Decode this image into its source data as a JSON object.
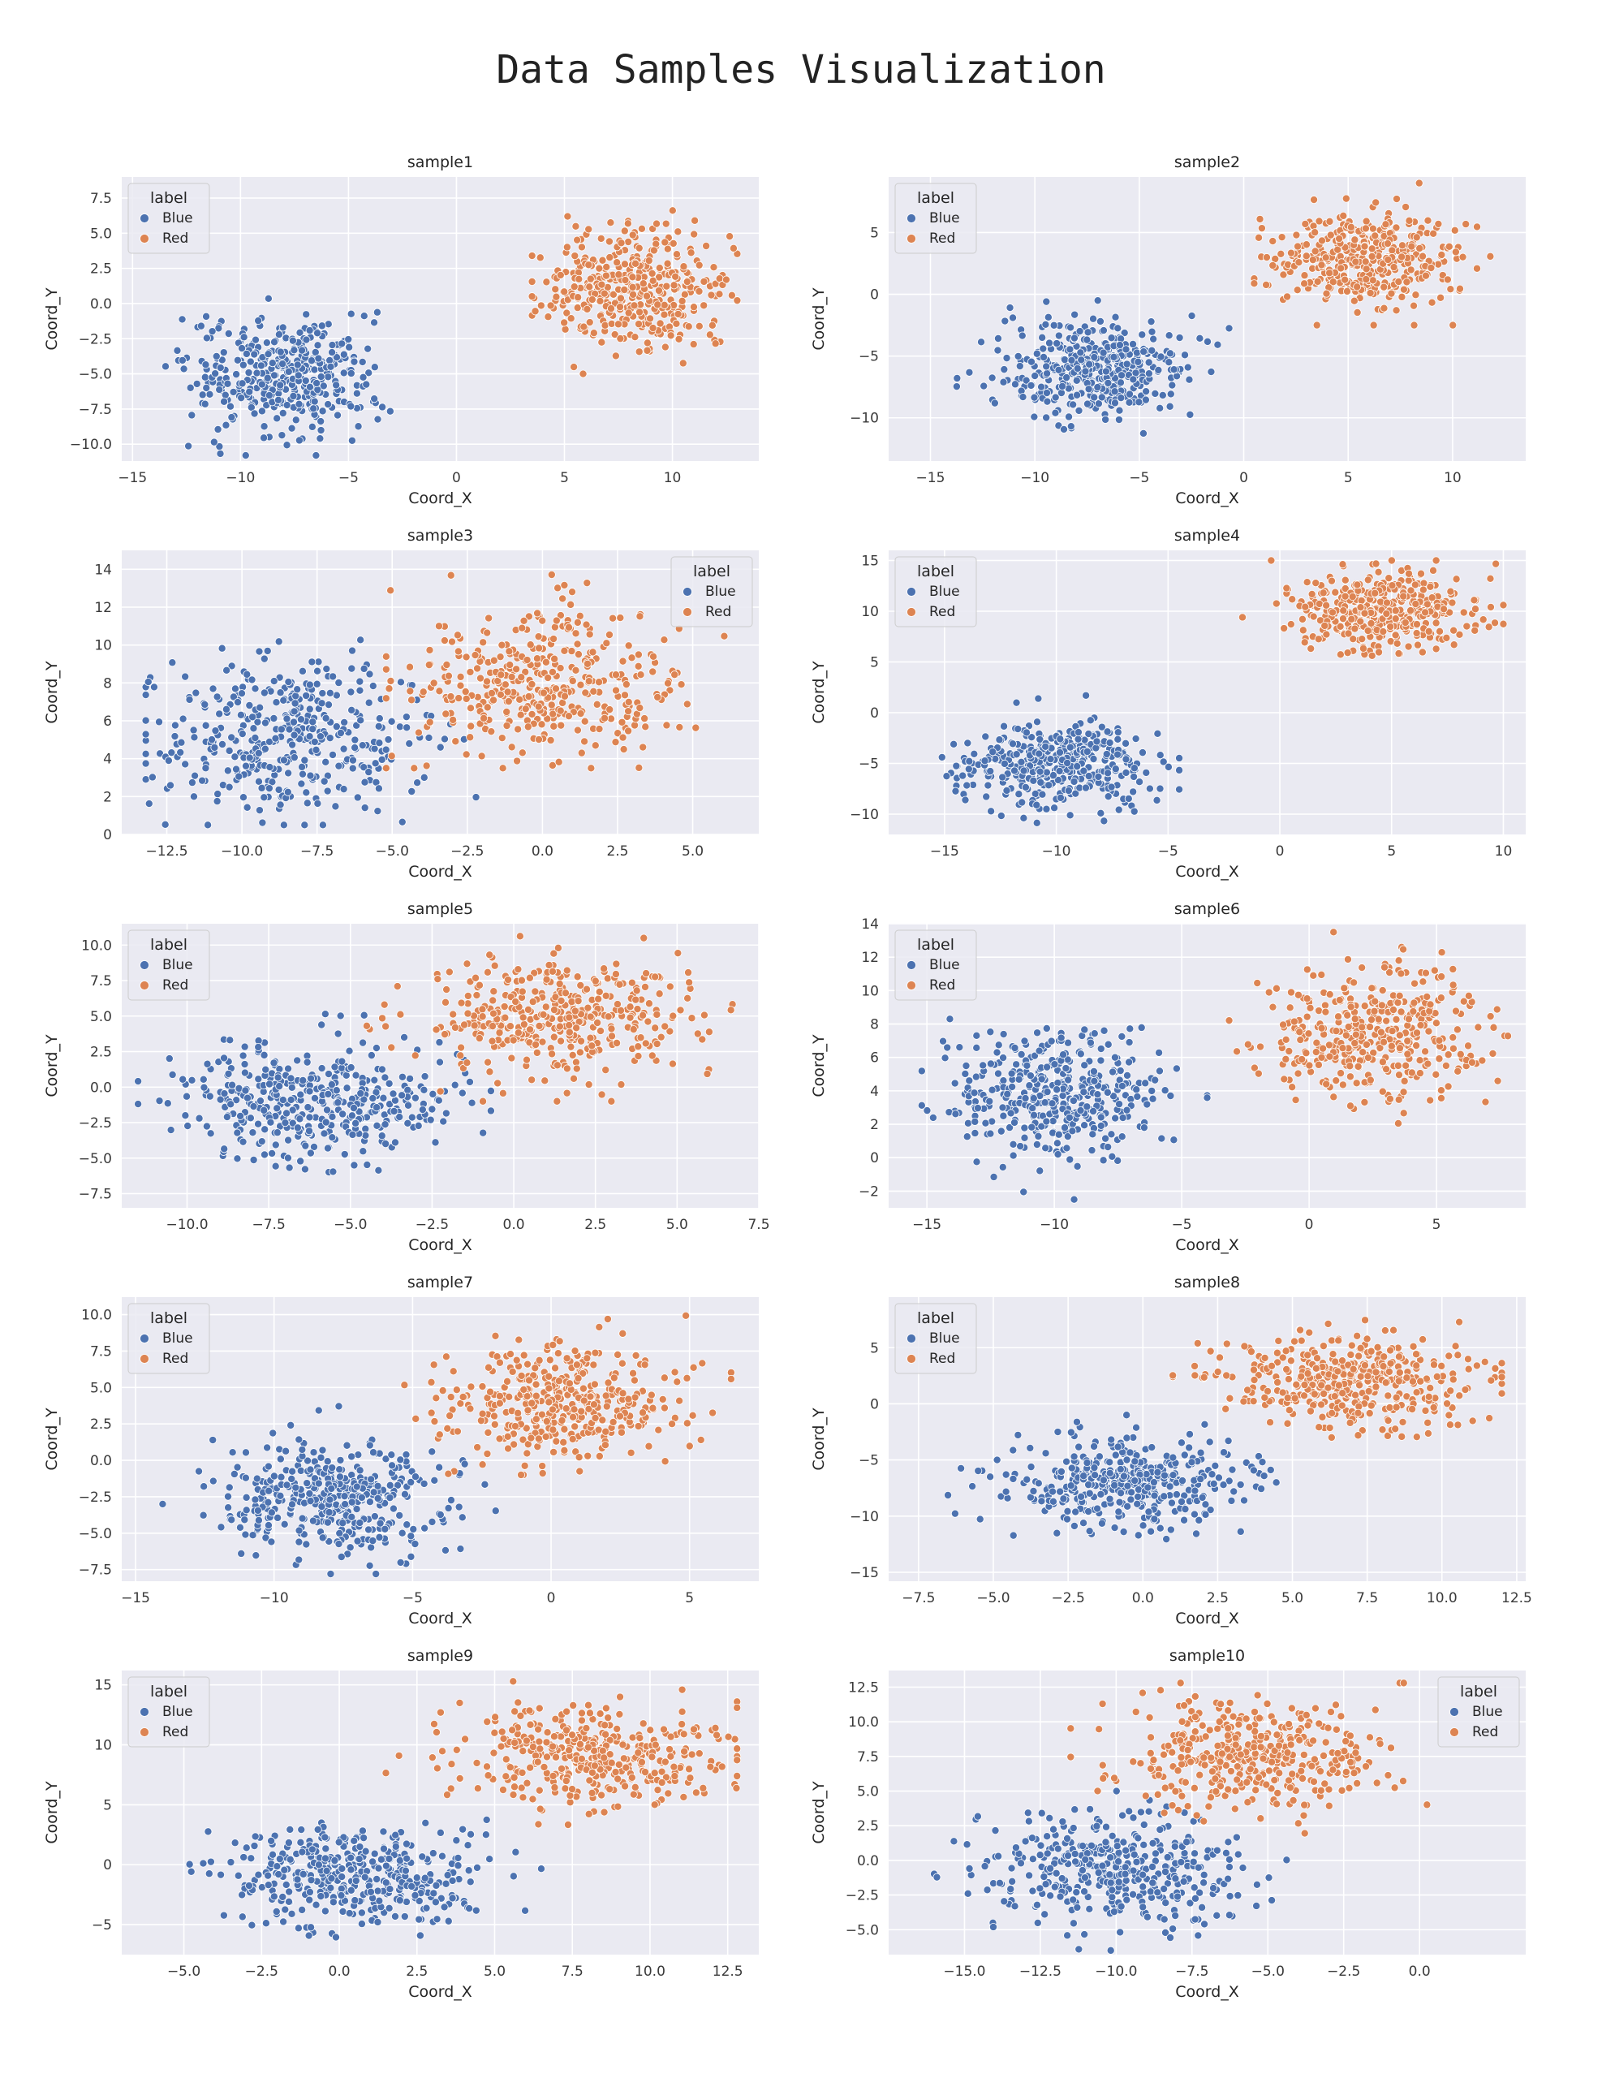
{
  "title": "Data Samples Visualization",
  "palette": {
    "Blue": "#4c72b0",
    "Red": "#dd8452"
  },
  "chart_data": [
    {
      "type": "scatter",
      "title": "sample1",
      "xlabel": "Coord_X",
      "ylabel": "Coord_Y",
      "xlim": [
        -15.5,
        14.0
      ],
      "ylim": [
        -11.2,
        9.0
      ],
      "xticks": [
        -15,
        -10,
        -5,
        0,
        5,
        10
      ],
      "xtick_labels": [
        "−15",
        "−10",
        "−5",
        "0",
        "5",
        "10"
      ],
      "yticks": [
        -10,
        -7.5,
        -5,
        -2.5,
        0,
        2.5,
        5,
        7.5
      ],
      "ytick_labels": [
        "−10.0",
        "−7.5",
        "−5.0",
        "−2.5",
        "0.0",
        "2.5",
        "5.0",
        "7.5"
      ],
      "legend": {
        "title": "label",
        "loc": "upper-left",
        "entries": [
          "Blue",
          "Red"
        ]
      },
      "series": [
        {
          "name": "Blue",
          "center": [
            -8,
            -5
          ],
          "spread": [
            2.1,
            2.0
          ],
          "n": 400,
          "bounds": [
            -14.3,
            -2.0,
            -10.8,
            1.5
          ]
        },
        {
          "name": "Red",
          "center": [
            8,
            1
          ],
          "spread": [
            2.1,
            2.0
          ],
          "n": 400,
          "bounds": [
            3.5,
            13.0,
            -5.0,
            8.5
          ]
        }
      ]
    },
    {
      "type": "scatter",
      "title": "sample2",
      "xlabel": "Coord_X",
      "ylabel": "Coord_Y",
      "xlim": [
        -17.0,
        13.5
      ],
      "ylim": [
        -13.5,
        9.5
      ],
      "xticks": [
        -15,
        -10,
        -5,
        0,
        5,
        10
      ],
      "xtick_labels": [
        "−15",
        "−10",
        "−5",
        "0",
        "5",
        "10"
      ],
      "yticks": [
        -10,
        -5,
        0,
        5
      ],
      "ytick_labels": [
        "−10",
        "−5",
        "0",
        "5"
      ],
      "legend": {
        "title": "label",
        "loc": "upper-left",
        "entries": [
          "Blue",
          "Red"
        ]
      },
      "series": [
        {
          "name": "Blue",
          "center": [
            -7,
            -6
          ],
          "spread": [
            2.2,
            2.0
          ],
          "n": 400,
          "bounds": [
            -15.7,
            -0.7,
            -12.2,
            -0.5
          ]
        },
        {
          "name": "Red",
          "center": [
            6,
            3
          ],
          "spread": [
            2.2,
            2.0
          ],
          "n": 400,
          "bounds": [
            0.5,
            12.2,
            -2.5,
            9.0
          ]
        }
      ]
    },
    {
      "type": "scatter",
      "title": "sample3",
      "xlabel": "Coord_X",
      "ylabel": "Coord_Y",
      "xlim": [
        -14.0,
        7.2
      ],
      "ylim": [
        0,
        15.0
      ],
      "xticks": [
        -12.5,
        -10,
        -7.5,
        -5,
        -2.5,
        0,
        2.5,
        5
      ],
      "xtick_labels": [
        "−12.5",
        "−10.0",
        "−7.5",
        "−5.0",
        "−2.5",
        "0.0",
        "2.5",
        "5.0"
      ],
      "yticks": [
        0,
        2,
        4,
        6,
        8,
        10,
        12,
        14
      ],
      "ytick_labels": [
        "0",
        "2",
        "4",
        "6",
        "8",
        "10",
        "12",
        "14"
      ],
      "legend": {
        "title": "label",
        "loc": "upper-right",
        "entries": [
          "Blue",
          "Red"
        ]
      },
      "series": [
        {
          "name": "Blue",
          "center": [
            -8.5,
            5
          ],
          "spread": [
            2.2,
            2.0
          ],
          "n": 400,
          "bounds": [
            -13.2,
            -2.0,
            0.5,
            11.0
          ]
        },
        {
          "name": "Red",
          "center": [
            0,
            8
          ],
          "spread": [
            2.2,
            2.0
          ],
          "n": 400,
          "bounds": [
            -5.2,
            6.3,
            3.5,
            14.5
          ]
        }
      ]
    },
    {
      "type": "scatter",
      "title": "sample4",
      "xlabel": "Coord_X",
      "ylabel": "Coord_Y",
      "xlim": [
        -17.5,
        11.0
      ],
      "ylim": [
        -12.0,
        16.0
      ],
      "xticks": [
        -15,
        -10,
        -5,
        0,
        5,
        10
      ],
      "xtick_labels": [
        "−15",
        "−10",
        "−5",
        "0",
        "5",
        "10"
      ],
      "yticks": [
        -10,
        -5,
        0,
        5,
        10,
        15
      ],
      "ytick_labels": [
        "−10",
        "−5",
        "0",
        "5",
        "10",
        "15"
      ],
      "legend": {
        "title": "label",
        "loc": "upper-left",
        "entries": [
          "Blue",
          "Red"
        ]
      },
      "series": [
        {
          "name": "Blue",
          "center": [
            -10,
            -5
          ],
          "spread": [
            2.1,
            2.0
          ],
          "n": 400,
          "bounds": [
            -16.3,
            -4.5,
            -11.2,
            2.0
          ]
        },
        {
          "name": "Red",
          "center": [
            4.5,
            10
          ],
          "spread": [
            2.1,
            2.0
          ],
          "n": 400,
          "bounds": [
            -2.2,
            10.0,
            3.5,
            15.0
          ]
        }
      ]
    },
    {
      "type": "scatter",
      "title": "sample5",
      "xlabel": "Coord_X",
      "ylabel": "Coord_Y",
      "xlim": [
        -12.0,
        7.5
      ],
      "ylim": [
        -8.5,
        11.5
      ],
      "xticks": [
        -10,
        -7.5,
        -5,
        -2.5,
        0,
        2.5,
        5,
        7.5
      ],
      "xtick_labels": [
        "−10.0",
        "−7.5",
        "−5.0",
        "−2.5",
        "0.0",
        "2.5",
        "5.0",
        "7.5"
      ],
      "yticks": [
        -7.5,
        -5,
        -2.5,
        0,
        2.5,
        5,
        7.5,
        10
      ],
      "ytick_labels": [
        "−7.5",
        "−5.0",
        "−2.5",
        "0.0",
        "2.5",
        "5.0",
        "7.5",
        "10.0"
      ],
      "legend": {
        "title": "label",
        "loc": "upper-left",
        "entries": [
          "Blue",
          "Red"
        ]
      },
      "series": [
        {
          "name": "Blue",
          "center": [
            -6,
            -1
          ],
          "spread": [
            2.1,
            2.0
          ],
          "n": 400,
          "bounds": [
            -11.5,
            -0.7,
            -8.2,
            5.5
          ]
        },
        {
          "name": "Red",
          "center": [
            1.5,
            5
          ],
          "spread": [
            2.1,
            2.0
          ],
          "n": 400,
          "bounds": [
            -4.5,
            6.8,
            -1.0,
            11.0
          ]
        }
      ]
    },
    {
      "type": "scatter",
      "title": "sample6",
      "xlabel": "Coord_X",
      "ylabel": "Coord_Y",
      "xlim": [
        -16.5,
        8.5
      ],
      "ylim": [
        -3.0,
        14.0
      ],
      "xticks": [
        -15,
        -10,
        -5,
        0,
        5
      ],
      "xtick_labels": [
        "−15",
        "−10",
        "−5",
        "0",
        "5"
      ],
      "yticks": [
        -2,
        0,
        2,
        4,
        6,
        8,
        10,
        12,
        14
      ],
      "ytick_labels": [
        "−2",
        "0",
        "2",
        "4",
        "6",
        "8",
        "10",
        "12",
        "14"
      ],
      "legend": {
        "title": "label",
        "loc": "upper-left",
        "entries": [
          "Blue",
          "Red"
        ]
      },
      "series": [
        {
          "name": "Blue",
          "center": [
            -10,
            4
          ],
          "spread": [
            2.1,
            2.0
          ],
          "n": 400,
          "bounds": [
            -15.2,
            -4.0,
            -2.5,
            9.0
          ]
        },
        {
          "name": "Red",
          "center": [
            2.5,
            7.5
          ],
          "spread": [
            2.1,
            2.0
          ],
          "n": 400,
          "bounds": [
            -3.2,
            7.8,
            0.5,
            13.5
          ]
        }
      ]
    },
    {
      "type": "scatter",
      "title": "sample7",
      "xlabel": "Coord_X",
      "ylabel": "Coord_Y",
      "xlim": [
        -15.5,
        7.5
      ],
      "ylim": [
        -8.3,
        11.2
      ],
      "xticks": [
        -15,
        -10,
        -5,
        0,
        5
      ],
      "xtick_labels": [
        "−15",
        "−10",
        "−5",
        "0",
        "5"
      ],
      "yticks": [
        -7.5,
        -5,
        -2.5,
        0,
        2.5,
        5,
        7.5,
        10
      ],
      "ytick_labels": [
        "−7.5",
        "−5.0",
        "−2.5",
        "0.0",
        "2.5",
        "5.0",
        "7.5",
        "10.0"
      ],
      "legend": {
        "title": "label",
        "loc": "upper-left",
        "entries": [
          "Blue",
          "Red"
        ]
      },
      "series": [
        {
          "name": "Blue",
          "center": [
            -8,
            -2.5
          ],
          "spread": [
            2.1,
            2.0
          ],
          "n": 400,
          "bounds": [
            -14.5,
            -2.0,
            -7.8,
            4.0
          ]
        },
        {
          "name": "Red",
          "center": [
            0.5,
            4
          ],
          "spread": [
            2.1,
            2.0
          ],
          "n": 400,
          "bounds": [
            -5.5,
            6.5,
            -1.0,
            10.5
          ]
        }
      ]
    },
    {
      "type": "scatter",
      "title": "sample8",
      "xlabel": "Coord_X",
      "ylabel": "Coord_Y",
      "xlim": [
        -8.5,
        12.8
      ],
      "ylim": [
        -15.8,
        9.5
      ],
      "xticks": [
        -7.5,
        -5,
        -2.5,
        0,
        2.5,
        5,
        7.5,
        10,
        12.5
      ],
      "xtick_labels": [
        "−7.5",
        "−5.0",
        "−2.5",
        "0.0",
        "2.5",
        "5.0",
        "7.5",
        "10.0",
        "12.5"
      ],
      "yticks": [
        -15,
        -10,
        -5,
        0,
        5
      ],
      "ytick_labels": [
        "−15",
        "−10",
        "−5",
        "0",
        "5"
      ],
      "legend": {
        "title": "label",
        "loc": "upper-left",
        "entries": [
          "Blue",
          "Red"
        ]
      },
      "series": [
        {
          "name": "Blue",
          "center": [
            -0.5,
            -7
          ],
          "spread": [
            2.1,
            2.0
          ],
          "n": 400,
          "bounds": [
            -7.5,
            7.5,
            -14.8,
            -1.0
          ]
        },
        {
          "name": "Red",
          "center": [
            7,
            2
          ],
          "spread": [
            2.1,
            2.0
          ],
          "n": 400,
          "bounds": [
            1.0,
            12.0,
            -3.0,
            9.0
          ]
        }
      ]
    },
    {
      "type": "scatter",
      "title": "sample9",
      "xlabel": "Coord_X",
      "ylabel": "Coord_Y",
      "xlim": [
        -7.0,
        13.5
      ],
      "ylim": [
        -7.5,
        16.2
      ],
      "xticks": [
        -5,
        -2.5,
        0,
        2.5,
        5,
        7.5,
        10,
        12.5
      ],
      "xtick_labels": [
        "−5.0",
        "−2.5",
        "0.0",
        "2.5",
        "5.0",
        "7.5",
        "10.0",
        "12.5"
      ],
      "yticks": [
        -5,
        0,
        5,
        10,
        15
      ],
      "ytick_labels": [
        "−5",
        "0",
        "5",
        "10",
        "15"
      ],
      "legend": {
        "title": "label",
        "loc": "upper-left",
        "entries": [
          "Blue",
          "Red"
        ]
      },
      "series": [
        {
          "name": "Blue",
          "center": [
            0.5,
            -1
          ],
          "spread": [
            2.1,
            2.0
          ],
          "n": 400,
          "bounds": [
            -6.5,
            6.5,
            -6.5,
            5.0
          ]
        },
        {
          "name": "Red",
          "center": [
            8,
            9
          ],
          "spread": [
            2.1,
            2.0
          ],
          "n": 400,
          "bounds": [
            1.5,
            12.8,
            3.0,
            15.3
          ]
        }
      ]
    },
    {
      "type": "scatter",
      "title": "sample10",
      "xlabel": "Coord_X",
      "ylabel": "Coord_Y",
      "xlim": [
        -17.5,
        3.5
      ],
      "ylim": [
        -6.8,
        13.7
      ],
      "xticks": [
        -15,
        -12.5,
        -10,
        -7.5,
        -5,
        -2.5,
        0
      ],
      "xtick_labels": [
        "−15.0",
        "−12.5",
        "−10.0",
        "−7.5",
        "−5.0",
        "−2.5",
        "0.0"
      ],
      "yticks": [
        -5,
        -2.5,
        0,
        2.5,
        5,
        7.5,
        10,
        12.5
      ],
      "ytick_labels": [
        "−5.0",
        "−2.5",
        "0.0",
        "2.5",
        "5.0",
        "7.5",
        "10.0",
        "12.5"
      ],
      "legend": {
        "title": "label",
        "loc": "upper-right",
        "entries": [
          "Blue",
          "Red"
        ]
      },
      "series": [
        {
          "name": "Blue",
          "center": [
            -10,
            -1
          ],
          "spread": [
            2.1,
            2.0
          ],
          "n": 400,
          "bounds": [
            -16.0,
            -3.5,
            -6.5,
            5.0
          ]
        },
        {
          "name": "Red",
          "center": [
            -5.5,
            7.5
          ],
          "spread": [
            2.1,
            2.0
          ],
          "n": 400,
          "bounds": [
            -11.5,
            2.0,
            0.5,
            12.8
          ]
        }
      ]
    }
  ]
}
